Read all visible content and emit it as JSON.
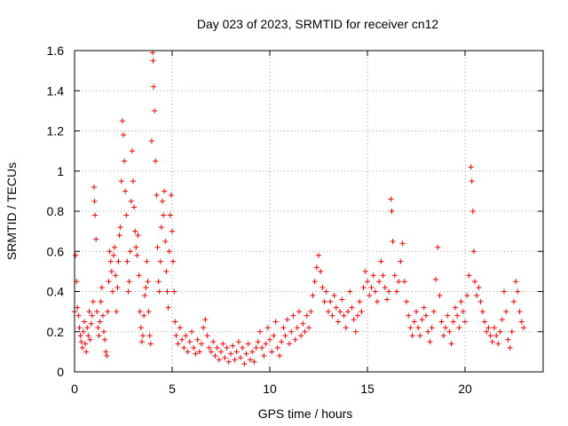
{
  "chart_data": {
    "type": "scatter",
    "title": "Day 023 of 2023, SRMTID for receiver cn12",
    "xlabel": "GPS time / hours",
    "ylabel": "SRMTID / TECUs",
    "xlim": [
      0,
      24
    ],
    "ylim": [
      0,
      1.6
    ],
    "xticks": [
      0,
      5,
      10,
      15,
      20
    ],
    "xtick_labels": [
      "0",
      "5",
      "10",
      "15",
      "20"
    ],
    "yticks": [
      0,
      0.2,
      0.4,
      0.6,
      0.8,
      1,
      1.2,
      1.4,
      1.6
    ],
    "ytick_labels": [
      "0",
      "0.2",
      "0.4",
      "0.6",
      "0.8",
      "1",
      "1.2",
      "1.4",
      "1.6"
    ],
    "grid": true,
    "marker": "+",
    "color": "#ff0000",
    "series": [
      {
        "name": "SRMTID",
        "points": [
          [
            0.0,
            0.3
          ],
          [
            0.05,
            0.58
          ],
          [
            0.1,
            0.45
          ],
          [
            0.15,
            0.32
          ],
          [
            0.2,
            0.28
          ],
          [
            0.25,
            0.22
          ],
          [
            0.3,
            0.18
          ],
          [
            0.35,
            0.15
          ],
          [
            0.4,
            0.12
          ],
          [
            0.45,
            0.2
          ],
          [
            0.5,
            0.25
          ],
          [
            0.55,
            0.14
          ],
          [
            0.6,
            0.1
          ],
          [
            0.65,
            0.22
          ],
          [
            0.7,
            0.18
          ],
          [
            0.75,
            0.3
          ],
          [
            0.8,
            0.16
          ],
          [
            0.85,
            0.24
          ],
          [
            0.9,
            0.28
          ],
          [
            0.95,
            0.35
          ],
          [
            1.0,
            0.92
          ],
          [
            1.02,
            0.85
          ],
          [
            1.05,
            0.78
          ],
          [
            1.1,
            0.66
          ],
          [
            1.15,
            0.3
          ],
          [
            1.2,
            0.22
          ],
          [
            1.25,
            0.18
          ],
          [
            1.3,
            0.25
          ],
          [
            1.35,
            0.35
          ],
          [
            1.4,
            0.42
          ],
          [
            1.45,
            0.28
          ],
          [
            1.5,
            0.2
          ],
          [
            1.55,
            0.16
          ],
          [
            1.6,
            0.1
          ],
          [
            1.65,
            0.08
          ],
          [
            1.7,
            0.3
          ],
          [
            1.75,
            0.45
          ],
          [
            1.8,
            0.6
          ],
          [
            1.85,
            0.55
          ],
          [
            1.9,
            0.5
          ],
          [
            1.95,
            0.4
          ],
          [
            2.0,
            0.58
          ],
          [
            2.05,
            0.62
          ],
          [
            2.1,
            0.48
          ],
          [
            2.15,
            0.3
          ],
          [
            2.2,
            0.42
          ],
          [
            2.25,
            0.55
          ],
          [
            2.3,
            0.68
          ],
          [
            2.35,
            0.72
          ],
          [
            2.4,
            0.95
          ],
          [
            2.45,
            1.25
          ],
          [
            2.5,
            1.18
          ],
          [
            2.55,
            1.05
          ],
          [
            2.6,
            0.9
          ],
          [
            2.65,
            0.78
          ],
          [
            2.7,
            0.55
          ],
          [
            2.75,
            0.4
          ],
          [
            2.8,
            0.45
          ],
          [
            2.85,
            0.6
          ],
          [
            2.9,
            0.85
          ],
          [
            2.95,
            1.1
          ],
          [
            3.0,
            0.95
          ],
          [
            3.05,
            0.82
          ],
          [
            3.1,
            0.7
          ],
          [
            3.15,
            0.62
          ],
          [
            3.2,
            0.58
          ],
          [
            3.25,
            0.68
          ],
          [
            3.3,
            0.48
          ],
          [
            3.35,
            0.3
          ],
          [
            3.4,
            0.22
          ],
          [
            3.45,
            0.15
          ],
          [
            3.5,
            0.18
          ],
          [
            3.55,
            0.28
          ],
          [
            3.6,
            0.38
          ],
          [
            3.65,
            0.42
          ],
          [
            3.7,
            0.55
          ],
          [
            3.75,
            0.45
          ],
          [
            3.8,
            0.3
          ],
          [
            3.85,
            0.18
          ],
          [
            3.9,
            0.14
          ],
          [
            3.95,
            1.15
          ],
          [
            4.0,
            1.59
          ],
          [
            4.02,
            1.55
          ],
          [
            4.05,
            1.42
          ],
          [
            4.1,
            1.3
          ],
          [
            4.15,
            1.05
          ],
          [
            4.2,
            0.88
          ],
          [
            4.25,
            0.62
          ],
          [
            4.3,
            0.45
          ],
          [
            4.35,
            0.4
          ],
          [
            4.4,
            0.55
          ],
          [
            4.45,
            0.72
          ],
          [
            4.5,
            0.85
          ],
          [
            4.55,
            0.78
          ],
          [
            4.6,
            0.9
          ],
          [
            4.65,
            0.65
          ],
          [
            4.7,
            0.5
          ],
          [
            4.75,
            0.4
          ],
          [
            4.8,
            0.32
          ],
          [
            4.85,
            0.6
          ],
          [
            4.9,
            0.78
          ],
          [
            4.95,
            0.88
          ],
          [
            5.0,
            0.7
          ],
          [
            5.05,
            0.55
          ],
          [
            5.1,
            0.4
          ],
          [
            5.15,
            0.25
          ],
          [
            5.2,
            0.18
          ],
          [
            5.3,
            0.14
          ],
          [
            5.4,
            0.22
          ],
          [
            5.5,
            0.16
          ],
          [
            5.6,
            0.12
          ],
          [
            5.7,
            0.18
          ],
          [
            5.8,
            0.1
          ],
          [
            5.9,
            0.15
          ],
          [
            6.0,
            0.2
          ],
          [
            6.1,
            0.12
          ],
          [
            6.2,
            0.09
          ],
          [
            6.3,
            0.16
          ],
          [
            6.4,
            0.1
          ],
          [
            6.5,
            0.14
          ],
          [
            6.6,
            0.22
          ],
          [
            6.7,
            0.26
          ],
          [
            6.8,
            0.18
          ],
          [
            6.9,
            0.12
          ],
          [
            7.0,
            0.1
          ],
          [
            7.1,
            0.15
          ],
          [
            7.2,
            0.08
          ],
          [
            7.3,
            0.12
          ],
          [
            7.4,
            0.06
          ],
          [
            7.5,
            0.1
          ],
          [
            7.6,
            0.14
          ],
          [
            7.7,
            0.07
          ],
          [
            7.8,
            0.12
          ],
          [
            7.9,
            0.05
          ],
          [
            8.0,
            0.09
          ],
          [
            8.1,
            0.13
          ],
          [
            8.2,
            0.06
          ],
          [
            8.3,
            0.1
          ],
          [
            8.4,
            0.15
          ],
          [
            8.5,
            0.07
          ],
          [
            8.6,
            0.12
          ],
          [
            8.7,
            0.04
          ],
          [
            8.8,
            0.09
          ],
          [
            8.9,
            0.14
          ],
          [
            9.0,
            0.06
          ],
          [
            9.1,
            0.1
          ],
          [
            9.2,
            0.05
          ],
          [
            9.3,
            0.12
          ],
          [
            9.4,
            0.15
          ],
          [
            9.5,
            0.2
          ],
          [
            9.6,
            0.12
          ],
          [
            9.7,
            0.08
          ],
          [
            9.8,
            0.14
          ],
          [
            9.9,
            0.22
          ],
          [
            10.0,
            0.16
          ],
          [
            10.1,
            0.1
          ],
          [
            10.2,
            0.18
          ],
          [
            10.3,
            0.25
          ],
          [
            10.4,
            0.12
          ],
          [
            10.5,
            0.08
          ],
          [
            10.6,
            0.15
          ],
          [
            10.7,
            0.22
          ],
          [
            10.8,
            0.18
          ],
          [
            10.9,
            0.26
          ],
          [
            11.0,
            0.14
          ],
          [
            11.1,
            0.2
          ],
          [
            11.2,
            0.28
          ],
          [
            11.3,
            0.16
          ],
          [
            11.4,
            0.22
          ],
          [
            11.5,
            0.3
          ],
          [
            11.6,
            0.18
          ],
          [
            11.7,
            0.24
          ],
          [
            11.8,
            0.2
          ],
          [
            11.9,
            0.28
          ],
          [
            12.0,
            0.22
          ],
          [
            12.1,
            0.3
          ],
          [
            12.2,
            0.38
          ],
          [
            12.3,
            0.45
          ],
          [
            12.4,
            0.52
          ],
          [
            12.5,
            0.58
          ],
          [
            12.6,
            0.5
          ],
          [
            12.7,
            0.42
          ],
          [
            12.8,
            0.35
          ],
          [
            12.9,
            0.4
          ],
          [
            13.0,
            0.3
          ],
          [
            13.1,
            0.35
          ],
          [
            13.2,
            0.28
          ],
          [
            13.3,
            0.38
          ],
          [
            13.4,
            0.32
          ],
          [
            13.5,
            0.25
          ],
          [
            13.6,
            0.3
          ],
          [
            13.7,
            0.36
          ],
          [
            13.8,
            0.28
          ],
          [
            13.9,
            0.22
          ],
          [
            14.0,
            0.3
          ],
          [
            14.1,
            0.4
          ],
          [
            14.2,
            0.32
          ],
          [
            14.3,
            0.26
          ],
          [
            14.4,
            0.2
          ],
          [
            14.5,
            0.28
          ],
          [
            14.6,
            0.35
          ],
          [
            14.7,
            0.3
          ],
          [
            14.8,
            0.42
          ],
          [
            14.9,
            0.5
          ],
          [
            15.0,
            0.45
          ],
          [
            15.1,
            0.38
          ],
          [
            15.2,
            0.42
          ],
          [
            15.3,
            0.48
          ],
          [
            15.4,
            0.4
          ],
          [
            15.5,
            0.35
          ],
          [
            15.6,
            0.45
          ],
          [
            15.7,
            0.55
          ],
          [
            15.8,
            0.48
          ],
          [
            15.9,
            0.42
          ],
          [
            16.0,
            0.36
          ],
          [
            16.1,
            0.4
          ],
          [
            16.2,
            0.86
          ],
          [
            16.25,
            0.8
          ],
          [
            16.3,
            0.65
          ],
          [
            16.4,
            0.48
          ],
          [
            16.5,
            0.4
          ],
          [
            16.6,
            0.45
          ],
          [
            16.7,
            0.55
          ],
          [
            16.8,
            0.64
          ],
          [
            16.9,
            0.45
          ],
          [
            17.0,
            0.35
          ],
          [
            17.1,
            0.28
          ],
          [
            17.2,
            0.22
          ],
          [
            17.3,
            0.18
          ],
          [
            17.4,
            0.25
          ],
          [
            17.5,
            0.3
          ],
          [
            17.6,
            0.22
          ],
          [
            17.7,
            0.18
          ],
          [
            17.8,
            0.26
          ],
          [
            17.9,
            0.32
          ],
          [
            18.0,
            0.28
          ],
          [
            18.1,
            0.2
          ],
          [
            18.2,
            0.15
          ],
          [
            18.3,
            0.22
          ],
          [
            18.4,
            0.3
          ],
          [
            18.5,
            0.46
          ],
          [
            18.6,
            0.62
          ],
          [
            18.7,
            0.38
          ],
          [
            18.8,
            0.25
          ],
          [
            18.9,
            0.18
          ],
          [
            19.0,
            0.22
          ],
          [
            19.1,
            0.28
          ],
          [
            19.2,
            0.2
          ],
          [
            19.3,
            0.14
          ],
          [
            19.4,
            0.25
          ],
          [
            19.5,
            0.32
          ],
          [
            19.6,
            0.28
          ],
          [
            19.7,
            0.22
          ],
          [
            19.8,
            0.35
          ],
          [
            19.9,
            0.3
          ],
          [
            20.0,
            0.25
          ],
          [
            20.1,
            0.38
          ],
          [
            20.2,
            0.48
          ],
          [
            20.3,
            1.02
          ],
          [
            20.35,
            0.95
          ],
          [
            20.4,
            0.8
          ],
          [
            20.45,
            0.6
          ],
          [
            20.5,
            0.45
          ],
          [
            20.6,
            0.38
          ],
          [
            20.7,
            0.42
          ],
          [
            20.8,
            0.35
          ],
          [
            20.9,
            0.3
          ],
          [
            21.0,
            0.25
          ],
          [
            21.1,
            0.2
          ],
          [
            21.2,
            0.22
          ],
          [
            21.3,
            0.18
          ],
          [
            21.4,
            0.15
          ],
          [
            21.5,
            0.22
          ],
          [
            21.6,
            0.18
          ],
          [
            21.7,
            0.14
          ],
          [
            21.8,
            0.2
          ],
          [
            21.9,
            0.26
          ],
          [
            22.0,
            0.4
          ],
          [
            22.1,
            0.3
          ],
          [
            22.2,
            0.16
          ],
          [
            22.3,
            0.12
          ],
          [
            22.4,
            0.2
          ],
          [
            22.5,
            0.35
          ],
          [
            22.6,
            0.45
          ],
          [
            22.7,
            0.4
          ],
          [
            22.8,
            0.3
          ],
          [
            22.9,
            0.25
          ],
          [
            23.0,
            0.22
          ]
        ]
      }
    ]
  }
}
